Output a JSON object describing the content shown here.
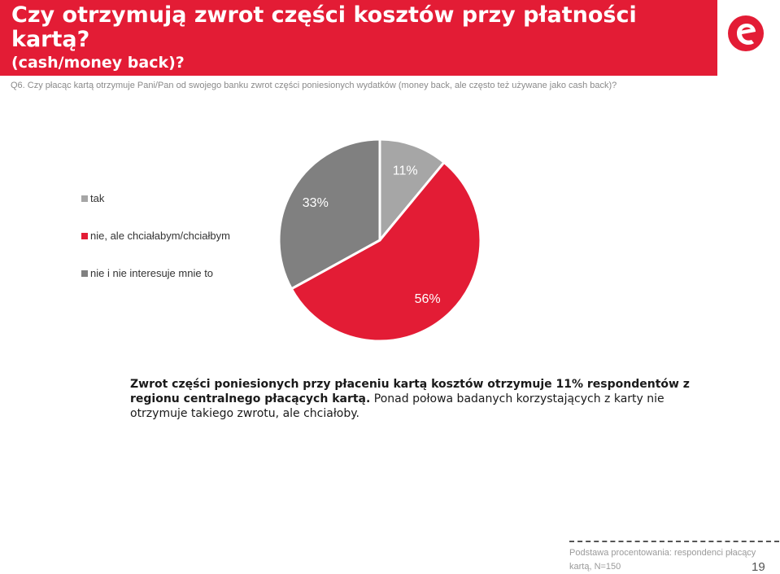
{
  "header": {
    "title_line1": "Czy otrzymują zwrot części kosztów przy płatności",
    "title_line2": "kartą?",
    "subtitle": "(cash/money back)?"
  },
  "logo": {
    "icon": "e-brand-logo-icon",
    "color": "#e31c35"
  },
  "question": "Q6. Czy płacąc kartą otrzymuje Pani/Pan od swojego banku zwrot części poniesionych wydatków (money back, ale często też używane jako cash back)?",
  "chart_data": {
    "type": "pie",
    "title": "",
    "legend_position": "left",
    "slices": [
      {
        "name": "tak",
        "value": 11,
        "label": "11%",
        "color": "#a6a6a6"
      },
      {
        "name": "nie, ale chciałabym/chciałbym",
        "value": 56,
        "label": "56%",
        "color": "#e31c35"
      },
      {
        "name": "nie i nie interesuje mnie to",
        "value": 33,
        "label": "33%",
        "color": "#808080"
      }
    ]
  },
  "summary": {
    "bold": "Zwrot części poniesionych przy płaceniu kartą kosztów otrzymuje 11% respondentów z regionu centralnego płacących kartą.",
    "regular": " Ponad połowa badanych korzystających z karty nie otrzymuje takiego zwrotu, ale chciałoby."
  },
  "footer": {
    "note": "Podstawa procentowania: respondenci płacący kartą, N=150",
    "page_number": "19"
  }
}
